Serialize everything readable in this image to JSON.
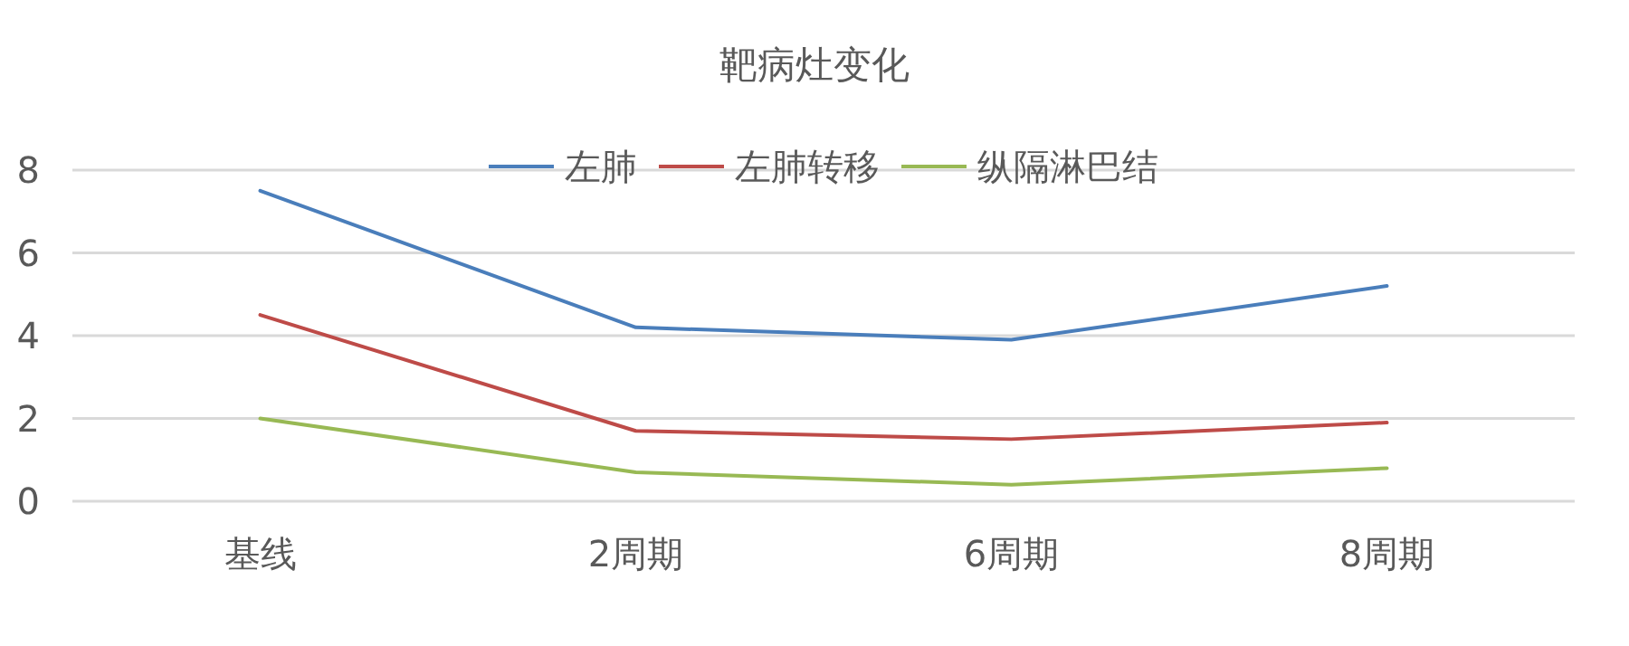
{
  "chart_data": {
    "type": "line",
    "title": "靶病灶变化",
    "categories": [
      "基线",
      "2周期",
      "6周期",
      "8周期"
    ],
    "series": [
      {
        "name": "左肺",
        "color": "#4a7ebb",
        "values": [
          7.5,
          4.2,
          3.9,
          5.2
        ]
      },
      {
        "name": "左肺转移",
        "color": "#be4b48",
        "values": [
          4.5,
          1.7,
          1.5,
          1.9
        ]
      },
      {
        "name": "纵隔淋巴结",
        "color": "#98b954",
        "values": [
          2.0,
          0.7,
          0.4,
          0.8
        ]
      }
    ],
    "ylim": [
      0,
      8
    ],
    "yticks": [
      0,
      2,
      4,
      6,
      8
    ],
    "grid": "y",
    "legend": "top",
    "marker": "none",
    "line_style": "solid"
  }
}
